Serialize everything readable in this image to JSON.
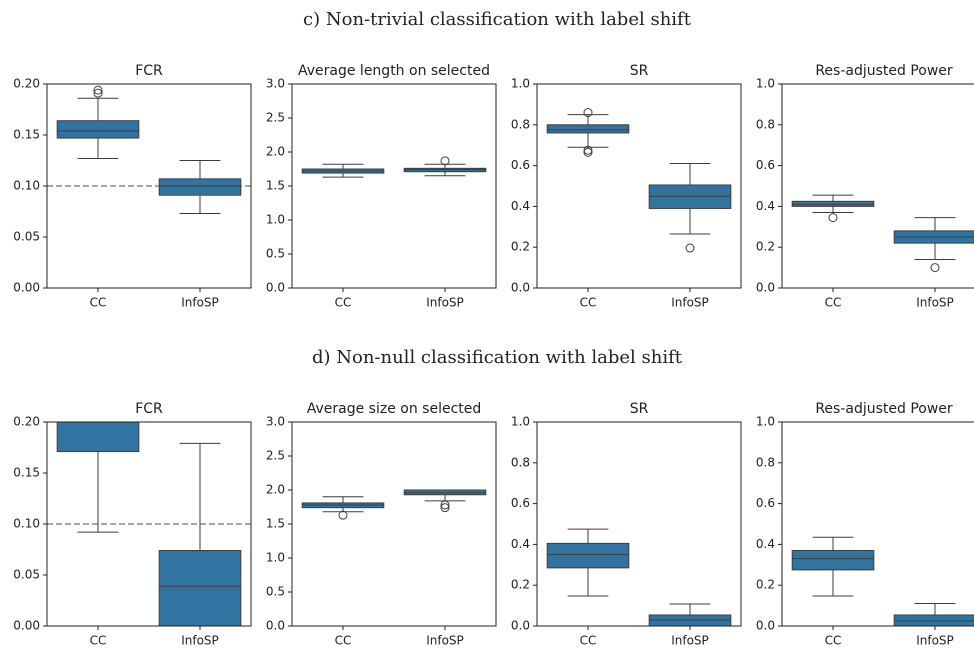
{
  "headings": [
    "c) Non-trivial classification with label shift",
    "d) Non-null classification with label shift"
  ],
  "chart_data": [
    {
      "type": "box",
      "title": "FCR",
      "categories": [
        "CC",
        "InfoSP"
      ],
      "color": "#3274a1",
      "ylim": [
        0,
        0.2
      ],
      "yticks": [
        {
          "value": 0,
          "label": "0.00"
        },
        0.05,
        {
          "value": 0.1,
          "label": "0.10"
        },
        0.15,
        {
          "value": 0.2,
          "label": "0.20"
        }
      ],
      "hline": 0.1,
      "boxes": [
        {
          "whislo": 0.127,
          "q1": 0.147,
          "med": 0.154,
          "q3": 0.164,
          "whishi": 0.186,
          "fliers": [
            0.194,
            0.191
          ]
        },
        {
          "whislo": 0.073,
          "q1": 0.091,
          "med": 0.1,
          "q3": 0.107,
          "whishi": 0.125,
          "fliers": []
        }
      ]
    },
    {
      "type": "box",
      "title": "Average length on selected",
      "categories": [
        "CC",
        "InfoSP"
      ],
      "color": "#3274a1",
      "ylim": [
        0,
        3
      ],
      "yticks": [
        {
          "value": 0,
          "label": "0.0"
        },
        0.5,
        {
          "value": 1,
          "label": "1.0"
        },
        1.5,
        {
          "value": 2,
          "label": "2.0"
        },
        2.5,
        {
          "value": 3,
          "label": "3.0"
        }
      ],
      "boxes": [
        {
          "whislo": 1.63,
          "q1": 1.69,
          "med": 1.72,
          "q3": 1.75,
          "whishi": 1.82,
          "fliers": []
        },
        {
          "whislo": 1.65,
          "q1": 1.71,
          "med": 1.74,
          "q3": 1.76,
          "whishi": 1.82,
          "fliers": [
            1.87
          ]
        }
      ]
    },
    {
      "type": "box",
      "title": "SR",
      "categories": [
        "CC",
        "InfoSP"
      ],
      "color": "#3274a1",
      "ylim": [
        0,
        1
      ],
      "yticks": [
        {
          "value": 0,
          "label": "0.0"
        },
        0.2,
        0.4,
        0.6,
        0.8,
        {
          "value": 1,
          "label": "1.0"
        }
      ],
      "boxes": [
        {
          "whislo": 0.69,
          "q1": 0.76,
          "med": 0.775,
          "q3": 0.8,
          "whishi": 0.85,
          "fliers": [
            0.86,
            0.675,
            0.665
          ]
        },
        {
          "whislo": 0.265,
          "q1": 0.39,
          "med": 0.45,
          "q3": 0.505,
          "whishi": 0.61,
          "fliers": [
            0.196
          ]
        }
      ]
    },
    {
      "type": "box",
      "title": "Res-adjusted Power",
      "categories": [
        "CC",
        "InfoSP"
      ],
      "color": "#3274a1",
      "ylim": [
        0,
        1
      ],
      "yticks": [
        {
          "value": 0,
          "label": "0.0"
        },
        0.2,
        0.4,
        0.6,
        0.8,
        {
          "value": 1,
          "label": "1.0"
        }
      ],
      "boxes": [
        {
          "whislo": 0.37,
          "q1": 0.4,
          "med": 0.41,
          "q3": 0.425,
          "whishi": 0.455,
          "fliers": [
            0.345
          ]
        },
        {
          "whislo": 0.14,
          "q1": 0.22,
          "med": 0.25,
          "q3": 0.28,
          "whishi": 0.345,
          "fliers": [
            0.1
          ]
        }
      ]
    },
    {
      "type": "box",
      "title": "FCR",
      "categories": [
        "CC",
        "InfoSP"
      ],
      "color": "#3274a1",
      "ylim": [
        0,
        0.2
      ],
      "yticks": [
        {
          "value": 0,
          "label": "0.00"
        },
        0.05,
        {
          "value": 0.1,
          "label": "0.10"
        },
        0.15,
        {
          "value": 0.2,
          "label": "0.20"
        }
      ],
      "hline": 0.1,
      "boxes": [
        {
          "whislo": 0.092,
          "q1": 0.171,
          "med": 0.2,
          "q3": 0.2,
          "whishi": 0.2,
          "fliers": []
        },
        {
          "whislo": 0,
          "q1": 0,
          "med": 0.039,
          "q3": 0.074,
          "whishi": 0.179,
          "fliers": []
        }
      ]
    },
    {
      "type": "box",
      "title": "Average size on selected",
      "categories": [
        "CC",
        "InfoSP"
      ],
      "color": "#3274a1",
      "ylim": [
        0,
        3
      ],
      "yticks": [
        {
          "value": 0,
          "label": "0.0"
        },
        0.5,
        {
          "value": 1,
          "label": "1.0"
        },
        1.5,
        {
          "value": 2,
          "label": "2.0"
        },
        2.5,
        {
          "value": 3,
          "label": "3.0"
        }
      ],
      "boxes": [
        {
          "whislo": 1.68,
          "q1": 1.74,
          "med": 1.78,
          "q3": 1.81,
          "whishi": 1.9,
          "fliers": [
            1.63
          ]
        },
        {
          "whislo": 1.84,
          "q1": 1.93,
          "med": 1.96,
          "q3": 2.0,
          "whishi": 2.0,
          "fliers": [
            1.78,
            1.74
          ]
        }
      ]
    },
    {
      "type": "box",
      "title": "SR",
      "categories": [
        "CC",
        "InfoSP"
      ],
      "color": "#3274a1",
      "ylim": [
        0,
        1
      ],
      "yticks": [
        {
          "value": 0,
          "label": "0.0"
        },
        0.2,
        0.4,
        0.6,
        0.8,
        {
          "value": 1,
          "label": "1.0"
        }
      ],
      "boxes": [
        {
          "whislo": 0.147,
          "q1": 0.285,
          "med": 0.35,
          "q3": 0.405,
          "whishi": 0.475,
          "fliers": []
        },
        {
          "whislo": 0,
          "q1": 0,
          "med": 0.03,
          "q3": 0.054,
          "whishi": 0.108,
          "fliers": []
        }
      ]
    },
    {
      "type": "box",
      "title": "Res-adjusted Power",
      "categories": [
        "CC",
        "InfoSP"
      ],
      "color": "#3274a1",
      "ylim": [
        0,
        1
      ],
      "yticks": [
        {
          "value": 0,
          "label": "0.0"
        },
        0.2,
        0.4,
        0.6,
        0.8,
        {
          "value": 1,
          "label": "1.0"
        }
      ],
      "boxes": [
        {
          "whislo": 0.147,
          "q1": 0.275,
          "med": 0.33,
          "q3": 0.37,
          "whishi": 0.435,
          "fliers": []
        },
        {
          "whislo": 0,
          "q1": 0,
          "med": 0.025,
          "q3": 0.054,
          "whishi": 0.11,
          "fliers": []
        }
      ]
    }
  ]
}
